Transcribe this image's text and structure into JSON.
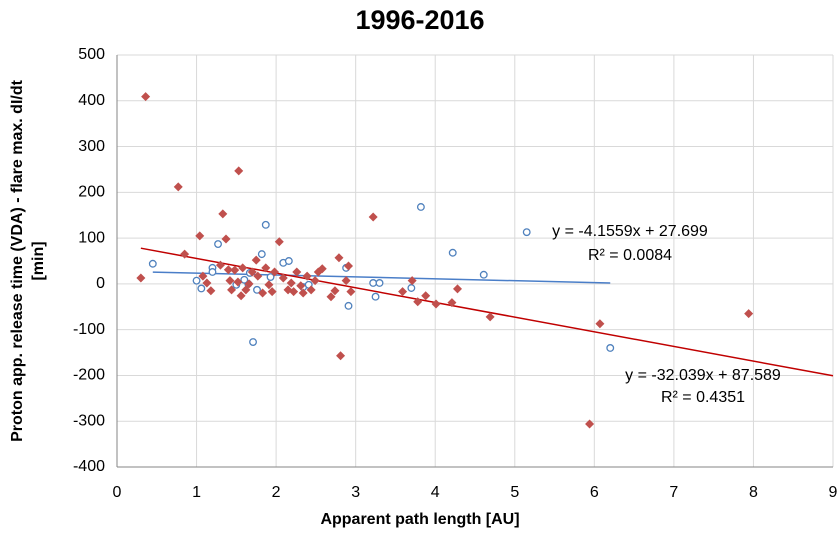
{
  "chart_data": {
    "type": "scatter",
    "title": "1996-2016",
    "xlabel": "Apparent path length [AU]",
    "ylabel": [
      "Proton app. release time (VDA) - flare max. dI/dt",
      "[min]"
    ],
    "xlim": [
      0,
      9
    ],
    "xticks": [
      0,
      1,
      2,
      3,
      4,
      5,
      6,
      7,
      8,
      9
    ],
    "ylim": [
      -400,
      500
    ],
    "yticks": [
      -400,
      -300,
      -200,
      -100,
      0,
      100,
      200,
      300,
      400,
      500
    ],
    "grid": true,
    "series": [
      {
        "marker": "circle",
        "color": "#4f81bd",
        "x": [
          0.45,
          1.0,
          1.06,
          1.2,
          1.2,
          1.27,
          1.71,
          1.82,
          1.87,
          1.65,
          1.76,
          1.93,
          2.09,
          2.16,
          2.34,
          2.41,
          2.88,
          2.91,
          3.22,
          3.25,
          3.3,
          3.7,
          3.82,
          4.22,
          4.61,
          6.2,
          1.67,
          1.5,
          1.6,
          5.15
        ],
        "values": [
          44,
          7,
          -10,
          35,
          26,
          87,
          -127,
          65,
          129,
          0,
          -13,
          15,
          46,
          50,
          -7,
          -2,
          35,
          -48,
          2,
          -28,
          2,
          -9,
          168,
          68,
          20,
          -140,
          24,
          -2,
          9,
          113
        ],
        "trendline": {
          "slope": -4.1559,
          "intercept": 27.699,
          "xrange": [
            0.45,
            6.2
          ],
          "color": "#4a7ec8",
          "equation": "y = -4.1559x + 27.699",
          "r2": "R² = 0.0084"
        }
      },
      {
        "marker": "diamond",
        "color": "#c0504d",
        "x": [
          0.3,
          0.36,
          0.77,
          0.85,
          1.04,
          1.08,
          1.13,
          1.18,
          1.3,
          1.33,
          1.37,
          1.4,
          1.42,
          1.44,
          1.48,
          1.52,
          1.53,
          1.56,
          1.58,
          1.62,
          1.66,
          1.7,
          1.75,
          1.77,
          1.83,
          1.87,
          1.91,
          1.95,
          1.98,
          2.04,
          2.09,
          2.15,
          2.19,
          2.22,
          2.26,
          2.31,
          2.34,
          2.39,
          2.44,
          2.49,
          2.53,
          2.58,
          2.69,
          2.74,
          2.79,
          2.81,
          2.88,
          2.91,
          2.94,
          3.22,
          3.59,
          3.71,
          3.78,
          3.88,
          4.01,
          4.21,
          4.28,
          4.69,
          5.94,
          6.07,
          7.94
        ],
        "values": [
          13,
          409,
          212,
          65,
          105,
          17,
          2,
          -15,
          41,
          153,
          98,
          31,
          7,
          -13,
          30,
          4,
          247,
          -26,
          35,
          -13,
          0,
          26,
          52,
          17,
          -20,
          35,
          -2,
          -17,
          26,
          92,
          13,
          -13,
          2,
          -17,
          26,
          -4,
          -20,
          17,
          -13,
          7,
          26,
          33,
          -28,
          -15,
          57,
          -157,
          7,
          39,
          -17,
          146,
          -17,
          7,
          -39,
          -26,
          -44,
          -41,
          -11,
          -72,
          -306,
          -87,
          -65
        ],
        "trendline": {
          "slope": -32.039,
          "intercept": 87.589,
          "xrange": [
            0.3,
            9
          ],
          "color": "#c00000",
          "equation": "y = -32.039x + 87.589",
          "r2": "R² = 0.4351"
        }
      }
    ]
  }
}
